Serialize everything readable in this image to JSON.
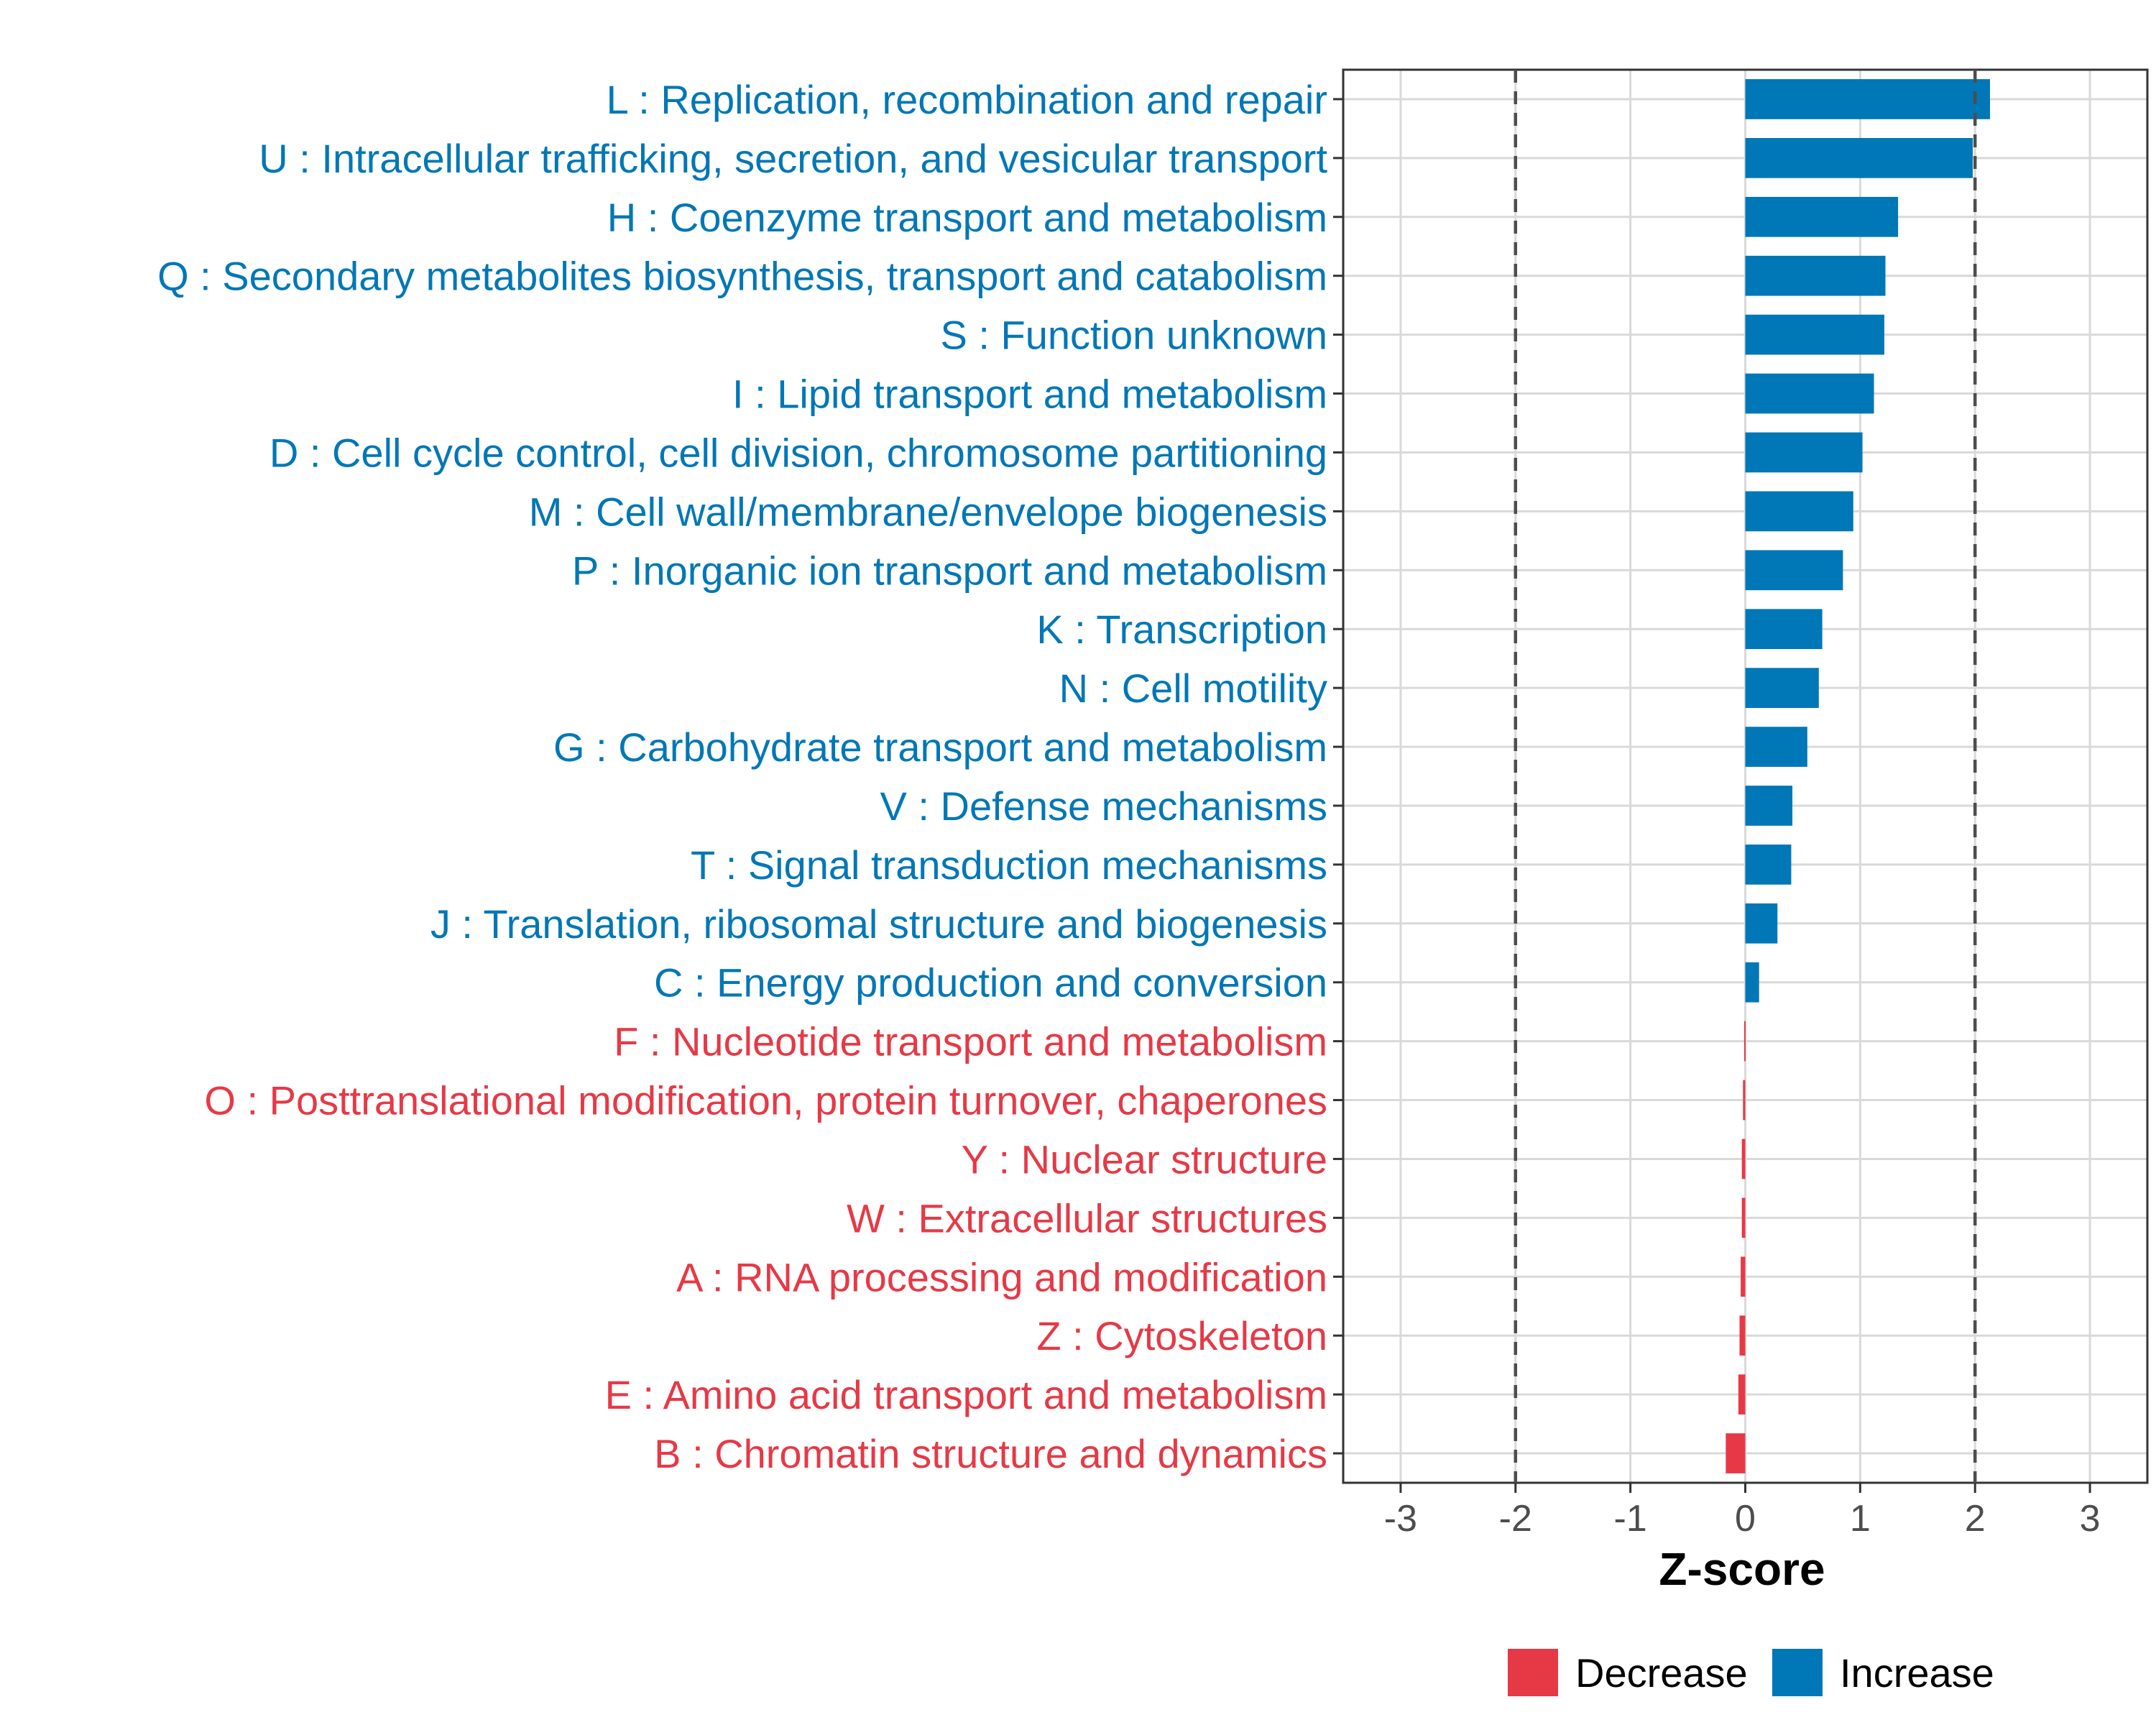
{
  "chart_data": {
    "type": "bar",
    "orientation": "horizontal",
    "xlabel": "Z-score",
    "xlim": [
      -3.5,
      3.5
    ],
    "xticks": [
      -3,
      -2,
      -1,
      0,
      1,
      2,
      3
    ],
    "reference_lines": [
      -2,
      2
    ],
    "grid": true,
    "legend_position": "bottom",
    "colors": {
      "Decrease": "#e63946",
      "Increase": "#0077b6"
    },
    "legend": [
      {
        "name": "Decrease",
        "color": "#e63946"
      },
      {
        "name": "Increase",
        "color": "#0077b6"
      }
    ],
    "categories": [
      "L : Replication, recombination and repair",
      "U : Intracellular trafficking, secretion, and vesicular transport",
      "H : Coenzyme transport and metabolism",
      "Q : Secondary metabolites biosynthesis, transport and catabolism",
      "S : Function unknown",
      "I : Lipid transport and metabolism",
      "D : Cell cycle control, cell division, chromosome partitioning",
      "M : Cell wall/membrane/envelope biogenesis",
      "P : Inorganic ion transport and metabolism",
      "K : Transcription",
      "N : Cell motility",
      "G : Carbohydrate transport and metabolism",
      "V : Defense mechanisms",
      "T : Signal transduction mechanisms",
      "J : Translation, ribosomal structure and biogenesis",
      "C : Energy production and conversion",
      "F : Nucleotide transport and metabolism",
      "O : Posttranslational modification, protein turnover, chaperones",
      "Y : Nuclear structure",
      "W : Extracellular structures",
      "A : RNA processing and modification",
      "Z : Cytoskeleton",
      "E : Amino acid transport and metabolism",
      "B : Chromatin structure and dynamics"
    ],
    "values": [
      2.13,
      1.98,
      1.33,
      1.22,
      1.21,
      1.12,
      1.02,
      0.94,
      0.85,
      0.67,
      0.64,
      0.54,
      0.41,
      0.4,
      0.28,
      0.12,
      -0.01,
      -0.02,
      -0.03,
      -0.03,
      -0.04,
      -0.05,
      -0.06,
      -0.17
    ],
    "direction": [
      "Increase",
      "Increase",
      "Increase",
      "Increase",
      "Increase",
      "Increase",
      "Increase",
      "Increase",
      "Increase",
      "Increase",
      "Increase",
      "Increase",
      "Increase",
      "Increase",
      "Increase",
      "Increase",
      "Decrease",
      "Decrease",
      "Decrease",
      "Decrease",
      "Decrease",
      "Decrease",
      "Decrease",
      "Decrease"
    ]
  }
}
